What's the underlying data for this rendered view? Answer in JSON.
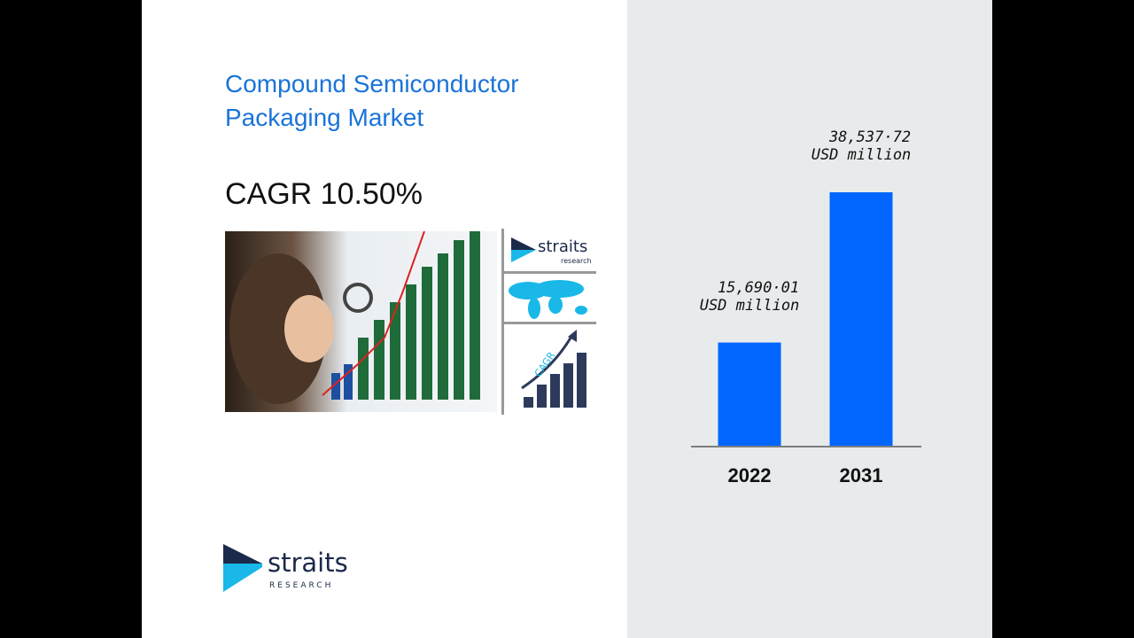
{
  "title": "Compound Semiconductor Packaging Market",
  "cagr": "CAGR 10.50%",
  "brand": {
    "name": "straits",
    "sub": "RESEARCH",
    "small_sub": "research",
    "cagr_icon_text": "CAGR"
  },
  "colors": {
    "title": "#1a73d9",
    "bar": "#0066ff",
    "brand_dark": "#1b2a4a",
    "brand_cyan": "#19b8e8"
  },
  "chart_data": {
    "type": "bar",
    "categories": [
      "2022",
      "2031"
    ],
    "values": [
      15690.01,
      38537.72
    ],
    "data_labels": [
      "15,690·01",
      "38,537·72"
    ],
    "unit": "USD million",
    "title": "",
    "xlabel": "",
    "ylabel": "",
    "ylim": [
      0,
      38537.72
    ],
    "grid": false
  }
}
